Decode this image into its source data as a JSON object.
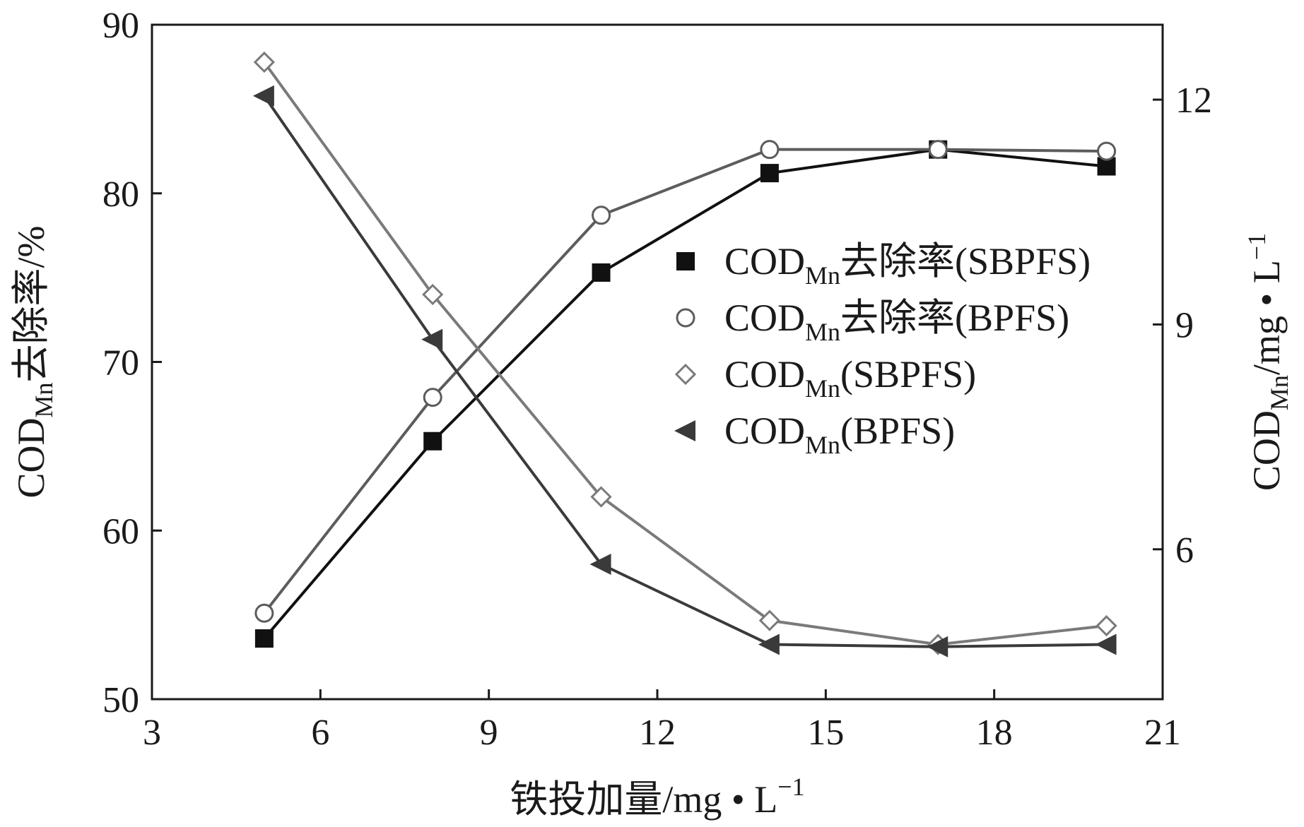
{
  "chart_data": {
    "type": "line",
    "xlabel": {
      "main": "铁投加量/mg • L",
      "sup": "−1"
    },
    "ylabel_left": {
      "pre": "COD",
      "sub": "Mn",
      "post": "去除率/%"
    },
    "ylabel_right": {
      "pre": "COD",
      "sub": "Mn",
      "post": "/mg • L",
      "sup": "−1"
    },
    "xlim": [
      3,
      21
    ],
    "xticks": [
      3,
      6,
      9,
      12,
      15,
      18,
      21
    ],
    "ylim_left": [
      50,
      90
    ],
    "yticks_left": [
      50,
      60,
      70,
      80,
      90
    ],
    "ylim_right": [
      4,
      13
    ],
    "yticks_right": [
      6,
      9,
      12
    ],
    "x": [
      5,
      8,
      11,
      14,
      17,
      20
    ],
    "series": [
      {
        "name": {
          "pre": "COD",
          "sub": "Mn",
          "post": "去除率(SBPFS)"
        },
        "axis": "left",
        "marker": "square",
        "color": "#111111",
        "values": [
          53.6,
          65.3,
          75.3,
          81.2,
          82.6,
          81.6
        ]
      },
      {
        "name": {
          "pre": "COD",
          "sub": "Mn",
          "post": "去除率(BPFS)"
        },
        "axis": "left",
        "marker": "circle",
        "color": "#5c5c5c",
        "values": [
          55.1,
          67.9,
          78.7,
          82.6,
          82.6,
          82.5
        ]
      },
      {
        "name": {
          "pre": "COD",
          "sub": "Mn",
          "post": "(SBPFS)"
        },
        "axis": "right",
        "marker": "diamond",
        "color": "#7a7a7a",
        "values": [
          12.5,
          9.4,
          6.7,
          5.05,
          4.73,
          4.98
        ]
      },
      {
        "name": {
          "pre": "COD",
          "sub": "Mn",
          "post": "(BPFS)"
        },
        "axis": "right",
        "marker": "triangle-left",
        "color": "#3a3a3a",
        "values": [
          12.05,
          8.8,
          5.8,
          4.73,
          4.7,
          4.73
        ]
      }
    ],
    "legend_position": "center-right",
    "grid": false
  }
}
